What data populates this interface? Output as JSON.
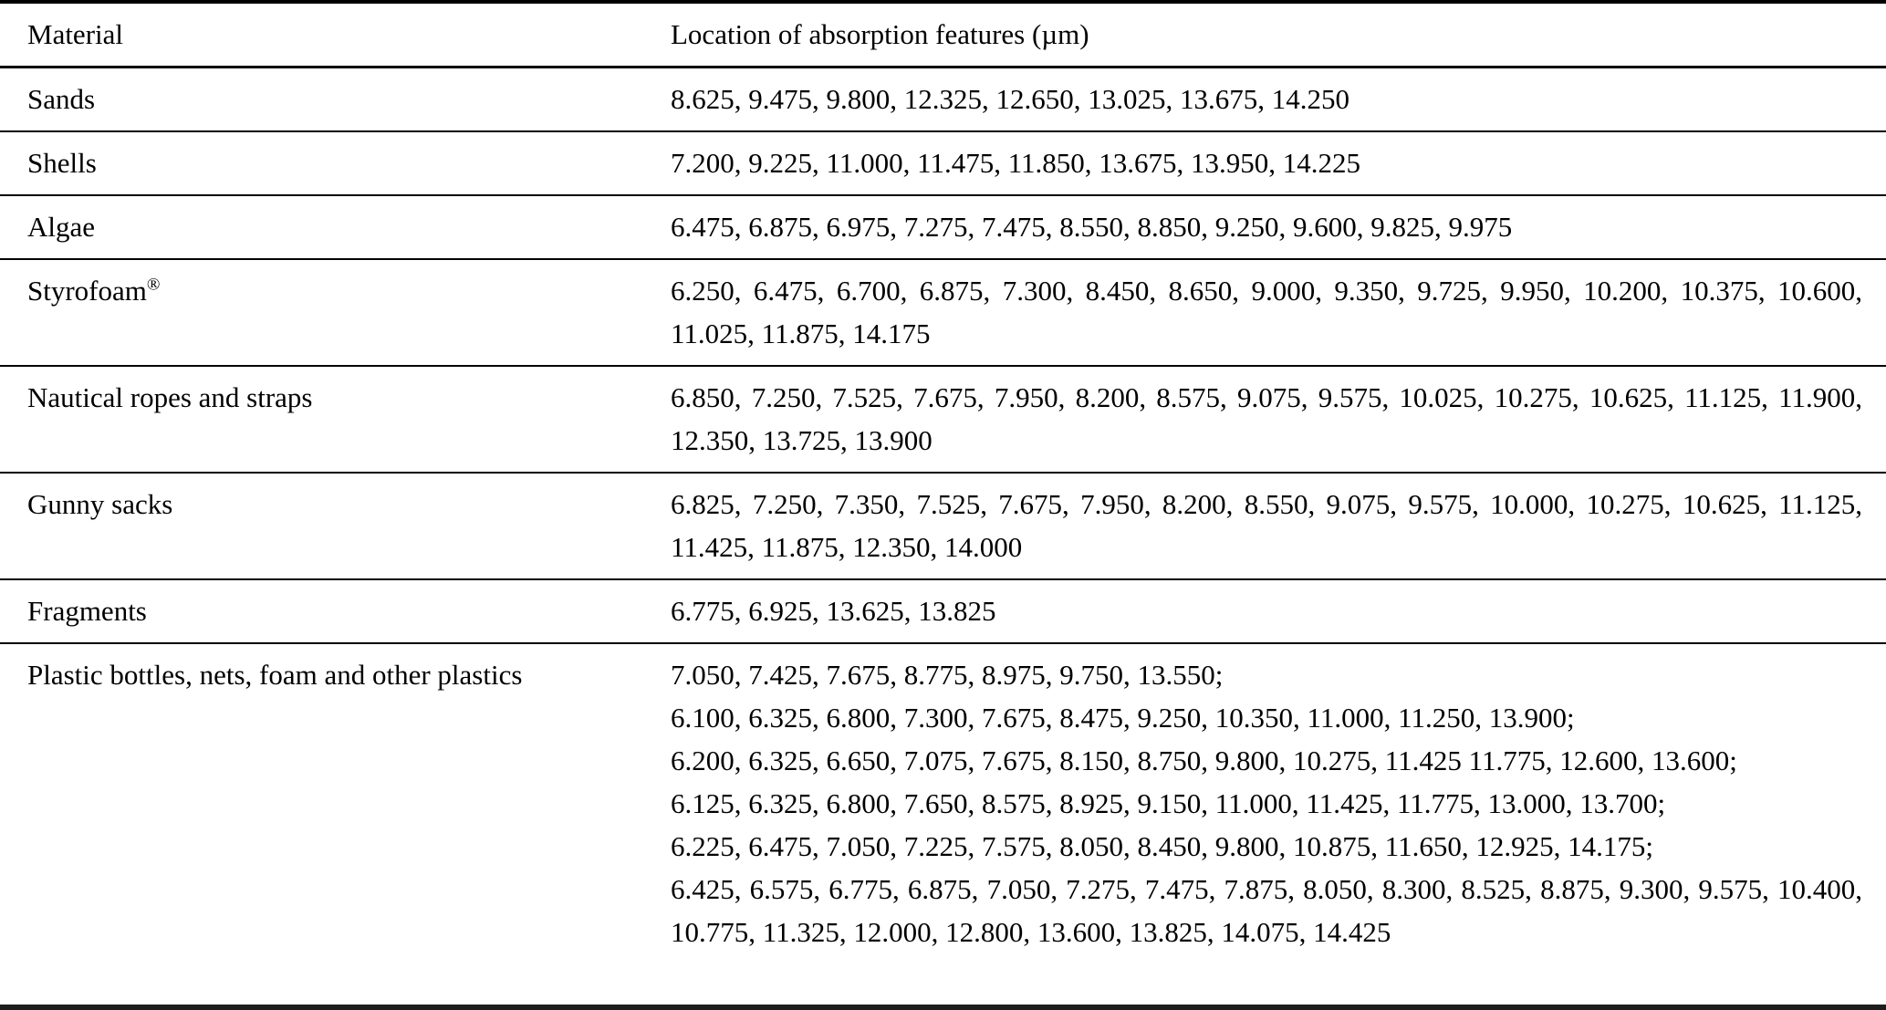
{
  "page": {
    "background": "#ffffff",
    "text_color": "#000000",
    "rule_color": "#000000"
  },
  "table": {
    "header": {
      "material": "Material",
      "location": "Location of absorption features (µm)"
    },
    "rows": [
      {
        "material": "Sands",
        "groups": [
          "8.625, 9.475, 9.800, 12.325, 12.650, 13.025, 13.675, 14.250"
        ]
      },
      {
        "material": "Shells",
        "groups": [
          "7.200, 9.225, 11.000, 11.475, 11.850, 13.675, 13.950, 14.225"
        ]
      },
      {
        "material": "Algae",
        "groups": [
          "6.475, 6.875, 6.975, 7.275, 7.475, 8.550, 8.850, 9.250, 9.600, 9.825, 9.975"
        ]
      },
      {
        "material": "Styrofoam",
        "material_sup": "®",
        "groups": [
          "6.250, 6.475, 6.700, 6.875, 7.300, 8.450, 8.650, 9.000, 9.350, 9.725, 9.950, 10.200, 10.375, 10.600, 11.025, 11.875, 14.175"
        ]
      },
      {
        "material": "Nautical ropes and straps",
        "groups": [
          "6.850, 7.250, 7.525, 7.675, 7.950, 8.200, 8.575, 9.075, 9.575, 10.025, 10.275, 10.625, 11.125, 11.900, 12.350, 13.725, 13.900"
        ]
      },
      {
        "material": "Gunny sacks",
        "groups": [
          "6.825, 7.250, 7.350, 7.525, 7.675, 7.950, 8.200, 8.550, 9.075, 9.575, 10.000, 10.275, 10.625, 11.125, 11.425, 11.875, 12.350, 14.000"
        ]
      },
      {
        "material": "Fragments",
        "groups": [
          "6.775, 6.925, 13.625, 13.825"
        ]
      },
      {
        "material": "Plastic bottles, nets, foam and other plastics",
        "groups": [
          "7.050, 7.425, 7.675, 8.775, 8.975, 9.750, 13.550;",
          "6.100, 6.325, 6.800, 7.300, 7.675, 8.475, 9.250, 10.350, 11.000, 11.250, 13.900;",
          "6.200, 6.325, 6.650, 7.075, 7.675, 8.150, 8.750, 9.800, 10.275, 11.425 11.775, 12.600, 13.600;",
          "6.125, 6.325, 6.800, 7.650, 8.575, 8.925, 9.150, 11.000, 11.425, 11.775, 13.000, 13.700;",
          "6.225, 6.475, 7.050, 7.225, 7.575, 8.050, 8.450, 9.800, 10.875, 11.650, 12.925, 14.175;",
          "6.425, 6.575, 6.775, 6.875, 7.050, 7.275, 7.475, 7.875, 8.050, 8.300, 8.525, 8.875, 9.300, 9.575, 10.400, 10.775, 11.325, 12.000, 12.800, 13.600, 13.825, 14.075, 14.425"
        ]
      }
    ]
  }
}
